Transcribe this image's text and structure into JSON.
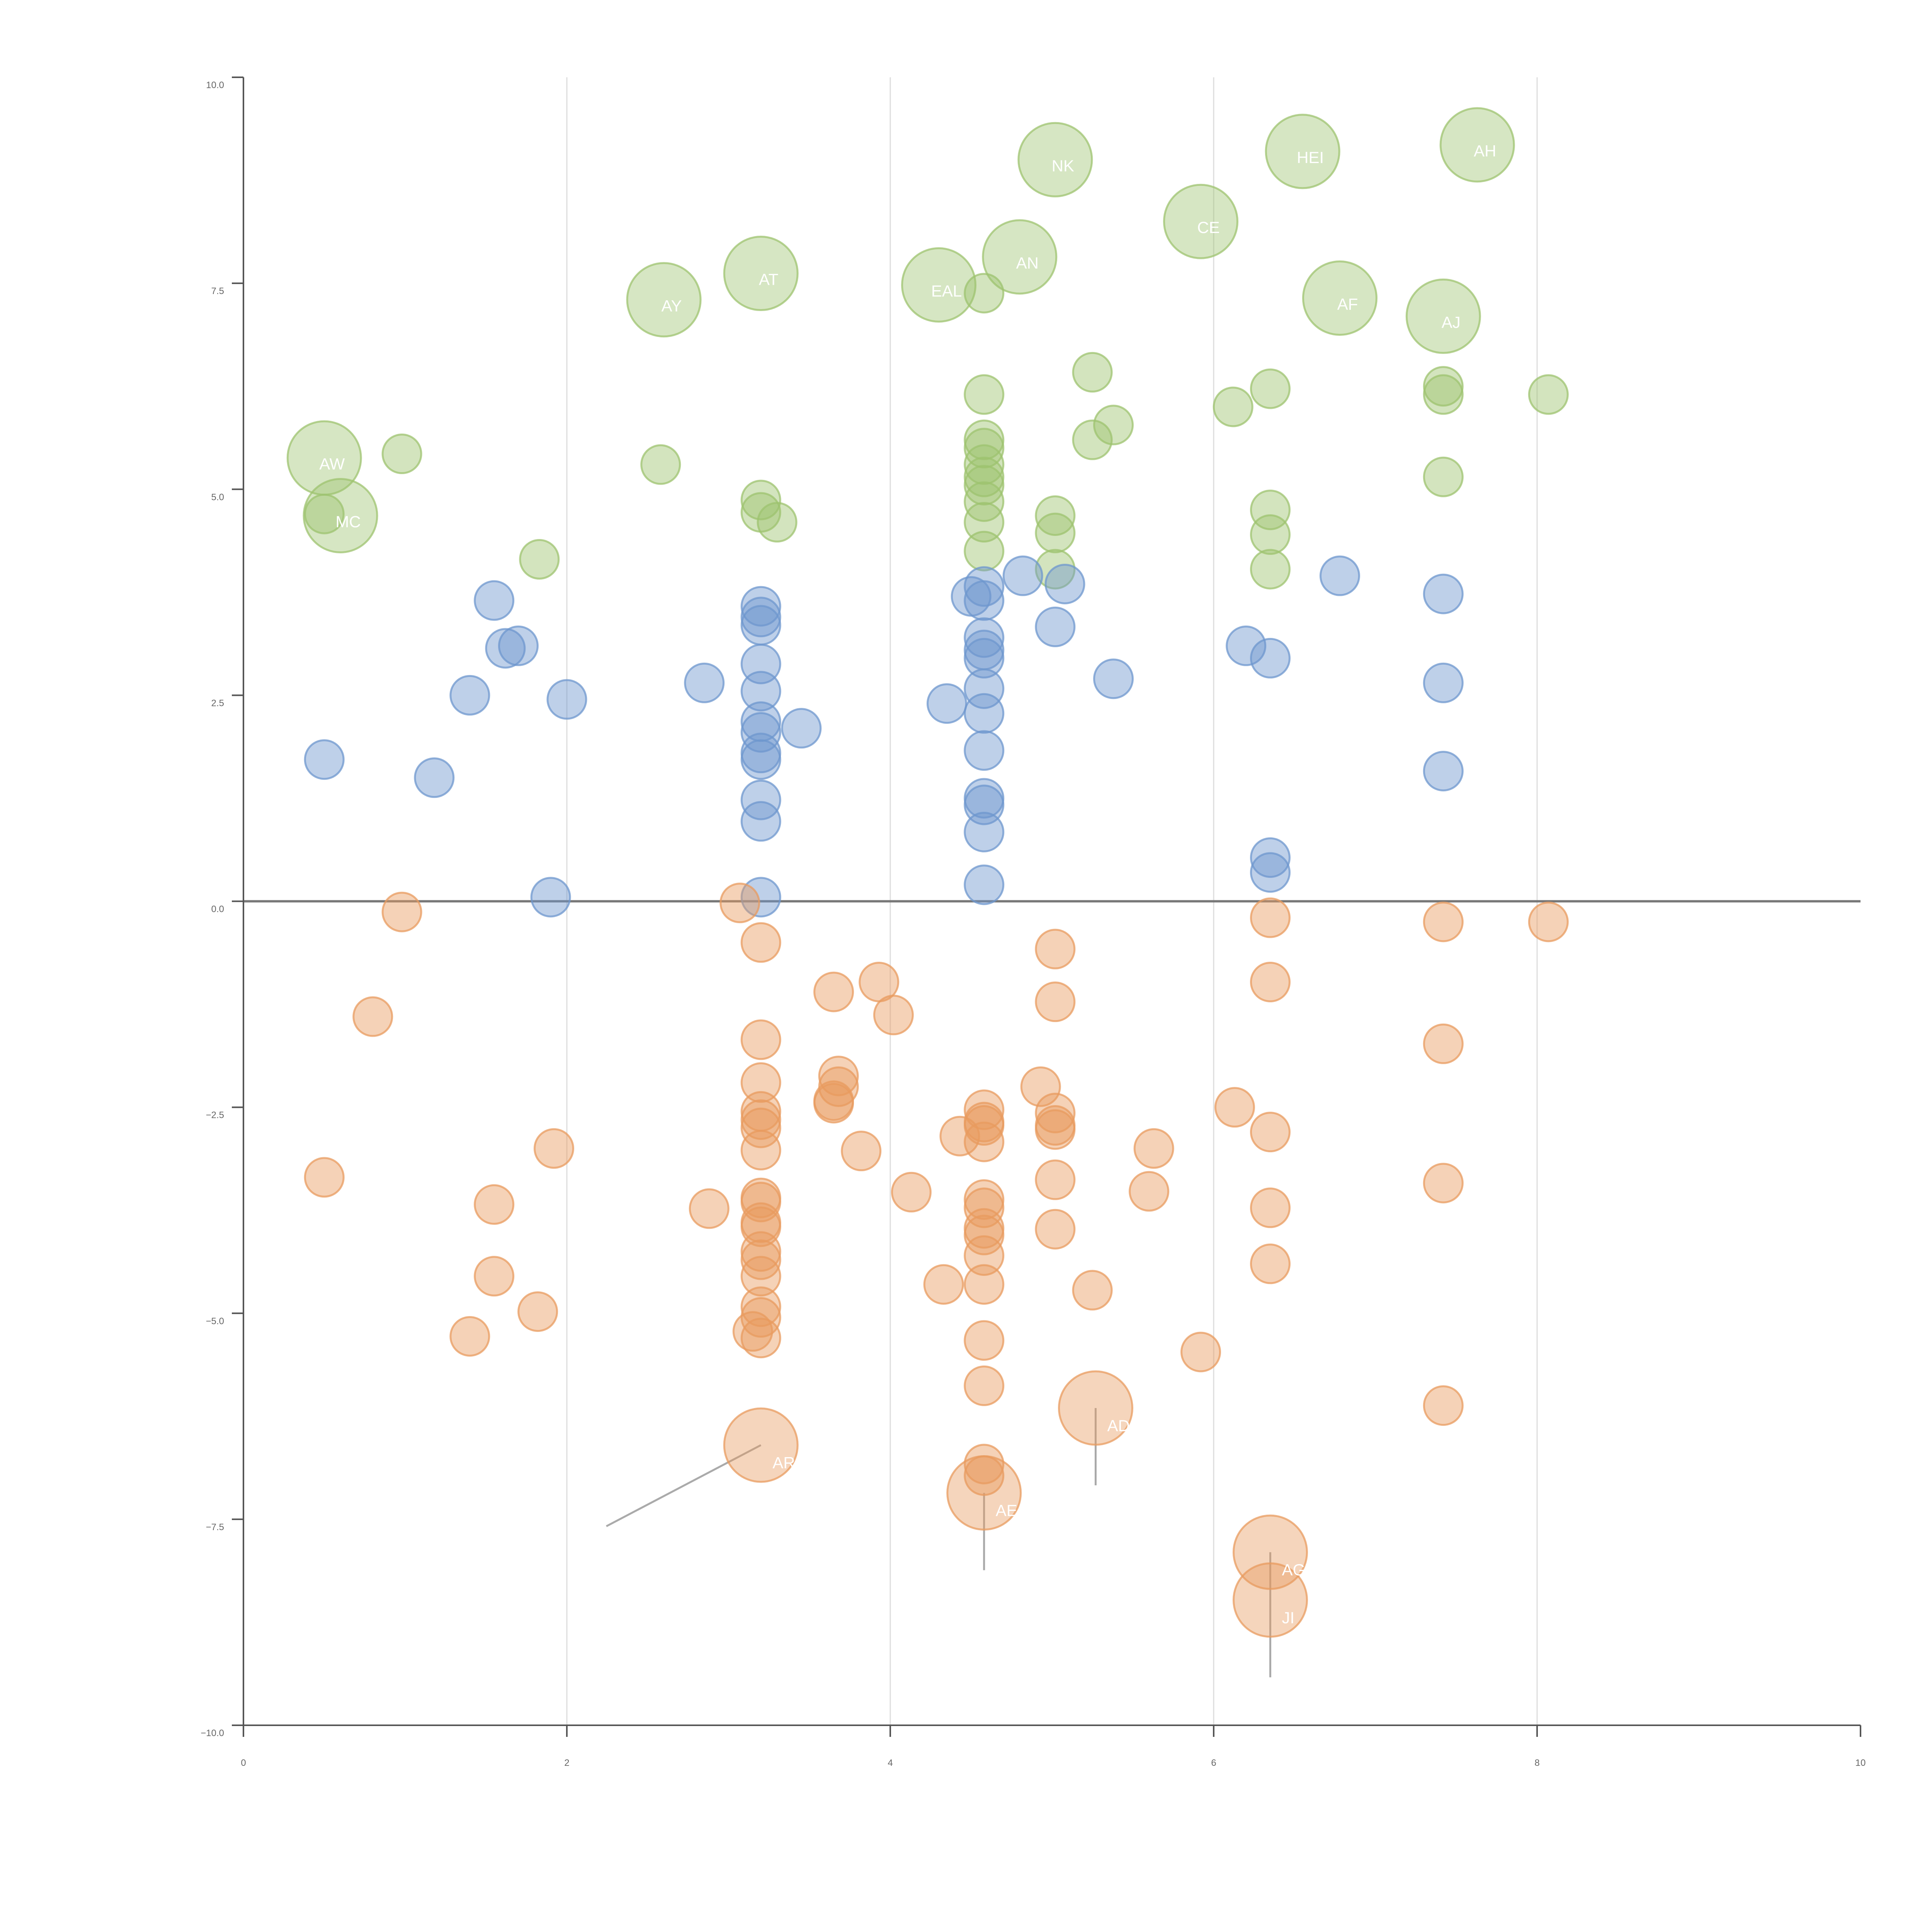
{
  "chart_data": {
    "type": "scatter",
    "title": "",
    "xlabel": "",
    "ylabel": "",
    "xlim": [
      0,
      10
    ],
    "ylim": [
      -10,
      10
    ],
    "grid": "vertical",
    "baseline_y": 0,
    "x_ticks": [
      "0",
      "2",
      "4",
      "6",
      "8",
      "10"
    ],
    "y_ticks": [
      "10.0",
      "7.5",
      "5.0",
      "2.5",
      "0.0",
      "−2.5",
      "−5.0",
      "−7.5",
      "−10.0"
    ],
    "colors": {
      "green": "#9dc36f",
      "blue": "#6e97ce",
      "orange": "#e89b5f",
      "grid": "#dddddd",
      "axis": "#555555",
      "baseline": "#777777",
      "leader": "#aaaaaa"
    },
    "series": [
      {
        "name": "green",
        "color": "#9dc36f",
        "points": [
          [
            0.5,
            4.7
          ],
          [
            0.98,
            5.43
          ],
          [
            1.83,
            4.15
          ],
          [
            2.58,
            5.3
          ],
          [
            3.2,
            4.87
          ],
          [
            3.2,
            4.72
          ],
          [
            3.3,
            4.6
          ],
          [
            4.58,
            7.38
          ],
          [
            4.58,
            6.15
          ],
          [
            4.58,
            5.6
          ],
          [
            4.58,
            5.5
          ],
          [
            4.58,
            5.3
          ],
          [
            4.58,
            5.15
          ],
          [
            4.58,
            5.05
          ],
          [
            4.58,
            4.85
          ],
          [
            4.58,
            4.6
          ],
          [
            4.58,
            4.25
          ],
          [
            5.02,
            4.68
          ],
          [
            5.02,
            4.47
          ],
          [
            5.02,
            4.03
          ],
          [
            5.25,
            6.42
          ],
          [
            5.25,
            5.6
          ],
          [
            5.38,
            5.78
          ],
          [
            6.12,
            6.0
          ],
          [
            6.35,
            6.22
          ],
          [
            6.35,
            4.75
          ],
          [
            6.35,
            4.45
          ],
          [
            6.35,
            4.03
          ],
          [
            7.42,
            6.25
          ],
          [
            7.42,
            6.15
          ],
          [
            7.42,
            5.15
          ],
          [
            8.07,
            6.15
          ]
        ]
      },
      {
        "name": "green-large",
        "color": "#9dc36f",
        "points": [
          [
            0.5,
            5.38,
            "AW"
          ],
          [
            0.6,
            4.68,
            "MC"
          ],
          [
            2.6,
            7.3,
            "AY"
          ],
          [
            3.2,
            7.62,
            "AT"
          ],
          [
            4.3,
            7.48,
            "EAL"
          ],
          [
            4.8,
            7.82,
            "AN"
          ],
          [
            5.02,
            9.0,
            "NK"
          ],
          [
            5.92,
            8.25,
            "CE"
          ],
          [
            6.55,
            9.1,
            "HEI"
          ],
          [
            6.78,
            7.32,
            "AF"
          ],
          [
            7.42,
            7.1,
            "AJ"
          ],
          [
            7.63,
            9.18,
            "AH"
          ]
        ]
      },
      {
        "name": "blue",
        "color": "#6e97ce",
        "points": [
          [
            0.5,
            1.72
          ],
          [
            1.18,
            1.5
          ],
          [
            1.4,
            2.5
          ],
          [
            1.55,
            3.65
          ],
          [
            1.62,
            3.07
          ],
          [
            1.7,
            3.1
          ],
          [
            1.9,
            0.05
          ],
          [
            2.0,
            2.45
          ],
          [
            2.85,
            2.65
          ],
          [
            3.2,
            3.58
          ],
          [
            3.2,
            3.45
          ],
          [
            3.2,
            3.35
          ],
          [
            3.2,
            2.88
          ],
          [
            3.2,
            2.55
          ],
          [
            3.2,
            2.18
          ],
          [
            3.2,
            2.05
          ],
          [
            3.2,
            1.8
          ],
          [
            3.2,
            1.72
          ],
          [
            3.2,
            1.23
          ],
          [
            3.2,
            0.97
          ],
          [
            3.2,
            0.05
          ],
          [
            3.45,
            2.1
          ],
          [
            4.35,
            2.4
          ],
          [
            4.5,
            3.7
          ],
          [
            4.58,
            3.82
          ],
          [
            4.58,
            3.65
          ],
          [
            4.58,
            3.2
          ],
          [
            4.58,
            3.05
          ],
          [
            4.58,
            2.95
          ],
          [
            4.58,
            2.58
          ],
          [
            4.58,
            2.28
          ],
          [
            4.58,
            1.83
          ],
          [
            4.58,
            1.25
          ],
          [
            4.58,
            1.17
          ],
          [
            4.58,
            0.84
          ],
          [
            4.58,
            0.2
          ],
          [
            4.82,
            3.95
          ],
          [
            5.02,
            3.33
          ],
          [
            5.08,
            3.85
          ],
          [
            5.38,
            2.7
          ],
          [
            6.2,
            3.1
          ],
          [
            6.35,
            2.95
          ],
          [
            6.35,
            0.53
          ],
          [
            6.35,
            0.35
          ],
          [
            6.78,
            3.95
          ],
          [
            7.42,
            3.73
          ],
          [
            7.42,
            2.65
          ],
          [
            7.42,
            1.58
          ]
        ]
      },
      {
        "name": "orange",
        "color": "#e89b5f",
        "points": [
          [
            0.5,
            -3.35
          ],
          [
            0.8,
            -1.4
          ],
          [
            0.98,
            -0.13
          ],
          [
            1.4,
            -5.28
          ],
          [
            1.55,
            -3.68
          ],
          [
            1.55,
            -4.55
          ],
          [
            1.82,
            -4.98
          ],
          [
            1.92,
            -3.0
          ],
          [
            2.88,
            -3.73
          ],
          [
            3.07,
            -0.02
          ],
          [
            3.15,
            -5.22
          ],
          [
            3.2,
            -0.5
          ],
          [
            3.2,
            -1.68
          ],
          [
            3.2,
            -2.2
          ],
          [
            3.2,
            -2.55
          ],
          [
            3.2,
            -2.65
          ],
          [
            3.2,
            -2.75
          ],
          [
            3.2,
            -3.02
          ],
          [
            3.2,
            -3.6
          ],
          [
            3.2,
            -3.65
          ],
          [
            3.2,
            -3.9
          ],
          [
            3.2,
            -3.95
          ],
          [
            3.2,
            -4.25
          ],
          [
            3.2,
            -4.35
          ],
          [
            3.2,
            -4.55
          ],
          [
            3.2,
            -4.92
          ],
          [
            3.2,
            -5.05
          ],
          [
            3.2,
            -5.3
          ],
          [
            3.65,
            -1.1
          ],
          [
            3.65,
            -2.45
          ],
          [
            3.65,
            -2.42
          ],
          [
            3.68,
            -2.12
          ],
          [
            3.68,
            -2.25
          ],
          [
            3.82,
            -3.03
          ],
          [
            3.93,
            -0.98
          ],
          [
            4.02,
            -1.38
          ],
          [
            4.13,
            -3.53
          ],
          [
            4.33,
            -4.65
          ],
          [
            4.43,
            -2.85
          ],
          [
            4.58,
            -2.53
          ],
          [
            4.58,
            -2.68
          ],
          [
            4.58,
            -2.72
          ],
          [
            4.58,
            -2.92
          ],
          [
            4.58,
            -3.62
          ],
          [
            4.58,
            -3.72
          ],
          [
            4.58,
            -3.97
          ],
          [
            4.58,
            -4.05
          ],
          [
            4.58,
            -4.3
          ],
          [
            4.58,
            -4.65
          ],
          [
            4.58,
            -5.33
          ],
          [
            4.58,
            -5.88
          ],
          [
            4.58,
            -6.83
          ],
          [
            4.58,
            -6.97
          ],
          [
            4.93,
            -2.25
          ],
          [
            5.02,
            -0.58
          ],
          [
            5.02,
            -1.22
          ],
          [
            5.02,
            -2.57
          ],
          [
            5.02,
            -2.77
          ],
          [
            5.02,
            -2.72
          ],
          [
            5.02,
            -3.38
          ],
          [
            5.02,
            -3.98
          ],
          [
            5.25,
            -4.72
          ],
          [
            5.6,
            -3.52
          ],
          [
            5.63,
            -3.0
          ],
          [
            5.92,
            -5.47
          ],
          [
            6.13,
            -2.5
          ],
          [
            6.35,
            -0.2
          ],
          [
            6.35,
            -0.98
          ],
          [
            6.35,
            -2.8
          ],
          [
            6.35,
            -3.72
          ],
          [
            6.35,
            -4.4
          ],
          [
            7.42,
            -0.25
          ],
          [
            7.42,
            -1.73
          ],
          [
            7.42,
            -3.42
          ],
          [
            7.42,
            -6.12
          ],
          [
            8.07,
            -0.25
          ]
        ]
      },
      {
        "name": "orange-large",
        "color": "#e89b5f",
        "points": [
          [
            3.2,
            -6.6,
            "AR"
          ],
          [
            4.58,
            -7.18,
            "AE"
          ],
          [
            5.27,
            -6.15,
            "AD"
          ],
          [
            6.35,
            -7.9,
            "AG"
          ],
          [
            6.35,
            -8.48,
            "JI"
          ]
        ]
      }
    ]
  }
}
